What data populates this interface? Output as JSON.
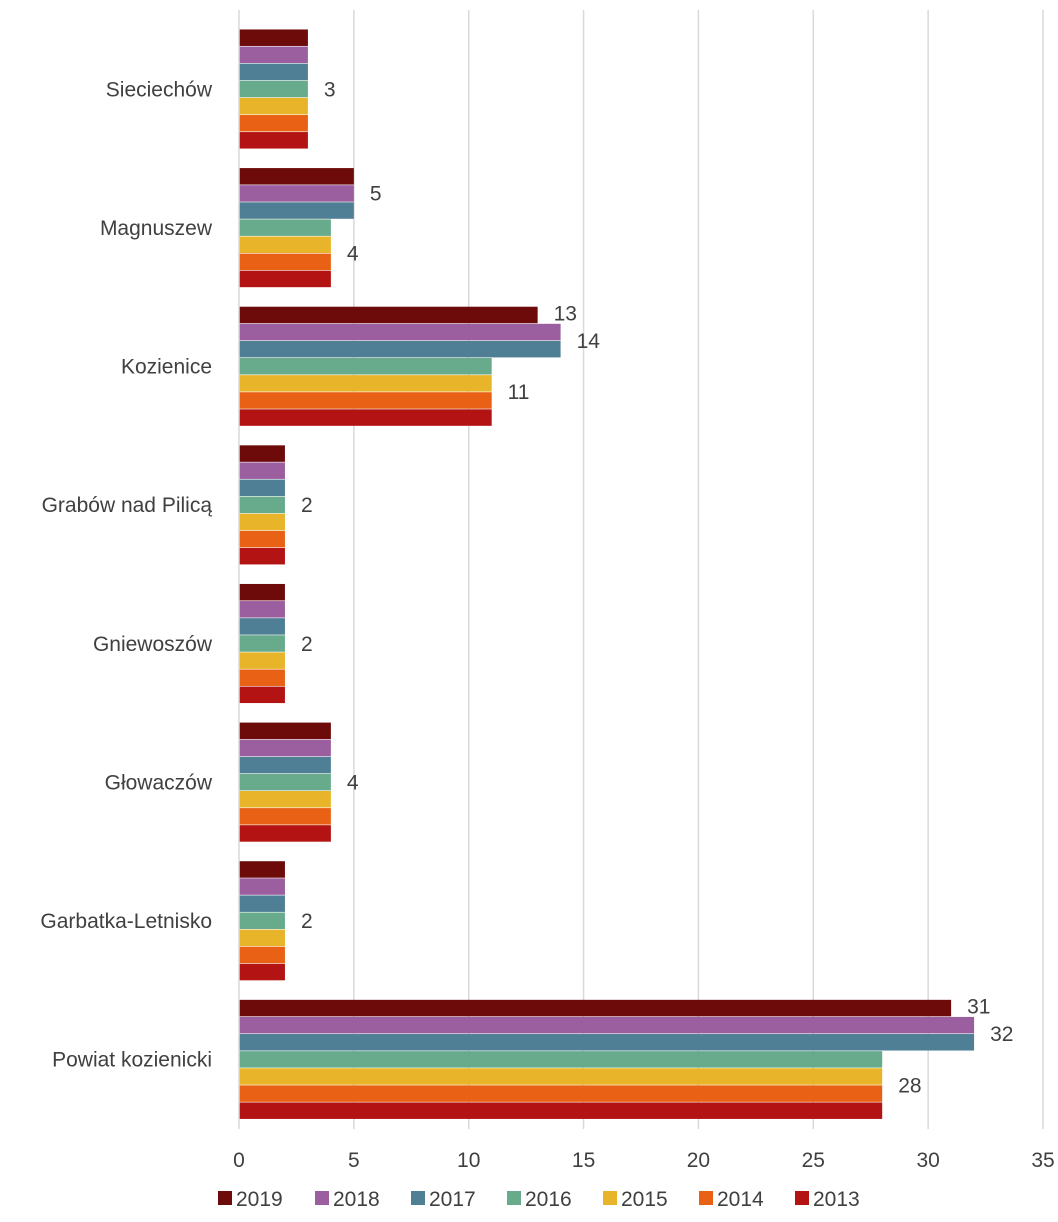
{
  "chart_data": {
    "type": "bar",
    "orientation": "horizontal",
    "title": "",
    "xlabel": "",
    "ylabel": "",
    "xlim": [
      0,
      35
    ],
    "x_ticks": [
      0,
      5,
      10,
      15,
      20,
      25,
      30,
      35
    ],
    "grid": true,
    "legend_position": "bottom",
    "categories": [
      "Sieciechów",
      "Magnuszew",
      "Kozienice",
      "Grabów nad Pilicą",
      "Gniewoszów",
      "Głowaczów",
      "Garbatka-Letnisko",
      "Powiat kozienicki"
    ],
    "series": [
      {
        "name": "2019",
        "color": "#6d0a0a",
        "values": [
          3,
          5,
          13,
          2,
          2,
          4,
          2,
          31
        ]
      },
      {
        "name": "2018",
        "color": "#9b5e9e",
        "values": [
          3,
          5,
          14,
          2,
          2,
          4,
          2,
          32
        ]
      },
      {
        "name": "2017",
        "color": "#4e7f94",
        "values": [
          3,
          5,
          14,
          2,
          2,
          4,
          2,
          32
        ]
      },
      {
        "name": "2016",
        "color": "#68ab8c",
        "values": [
          3,
          4,
          11,
          2,
          2,
          4,
          2,
          28
        ]
      },
      {
        "name": "2015",
        "color": "#e8b42a",
        "values": [
          3,
          4,
          11,
          2,
          2,
          4,
          2,
          28
        ]
      },
      {
        "name": "2014",
        "color": "#e86114",
        "values": [
          3,
          4,
          11,
          2,
          2,
          4,
          2,
          28
        ]
      },
      {
        "name": "2013",
        "color": "#b31313",
        "values": [
          3,
          4,
          11,
          2,
          2,
          4,
          2,
          28
        ]
      }
    ],
    "data_labels": [
      {
        "category": "Sieciechów",
        "values": [
          "3"
        ]
      },
      {
        "category": "Magnuszew",
        "values": [
          "5",
          "4"
        ]
      },
      {
        "category": "Kozienice",
        "values": [
          "13",
          "14",
          "11"
        ]
      },
      {
        "category": "Grabów nad Pilicą",
        "values": [
          "2"
        ]
      },
      {
        "category": "Gniewoszów",
        "values": [
          "2"
        ]
      },
      {
        "category": "Głowaczów",
        "values": [
          "4"
        ]
      },
      {
        "category": "Garbatka-Letnisko",
        "values": [
          "2"
        ]
      },
      {
        "category": "Powiat kozienicki",
        "values": [
          "31",
          "32",
          "28"
        ]
      }
    ]
  }
}
